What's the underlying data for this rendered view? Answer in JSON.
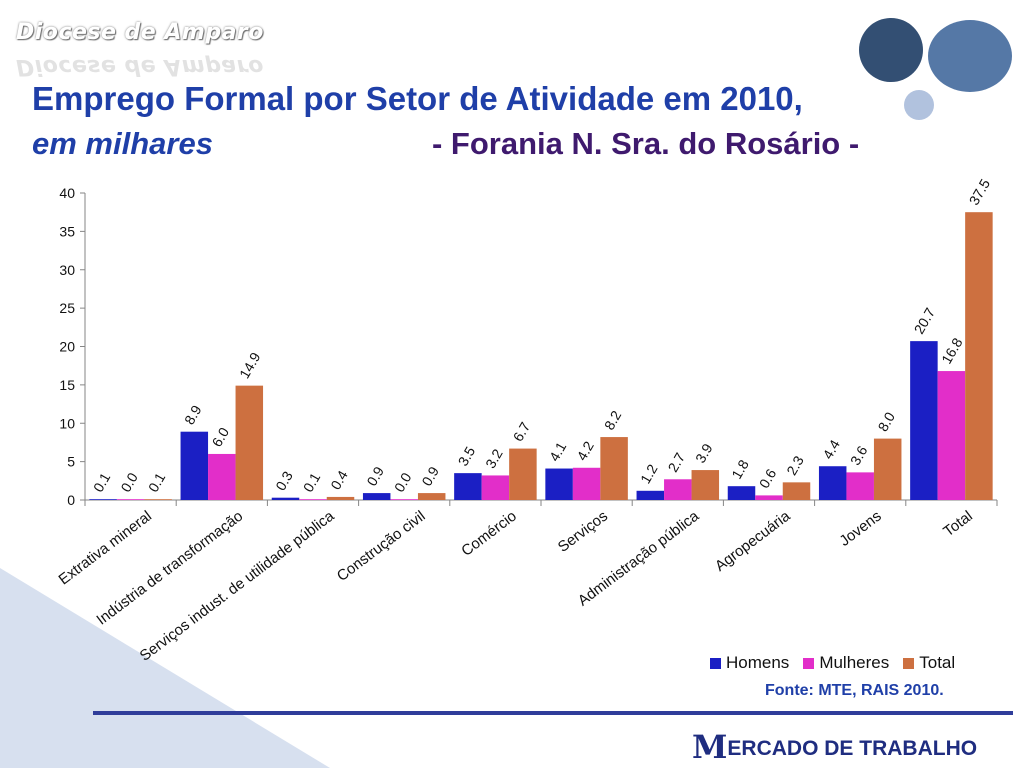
{
  "brand": "Diocese de Amparo",
  "title": {
    "line1": "Emprego Formal por Setor de Atividade em 2010,",
    "line2_italic": "em milhares",
    "line2_region": "- Forania N. Sra. do Rosário -"
  },
  "colors": {
    "homens": "#1b1fc4",
    "mulheres": "#e22ec9",
    "total": "#cd7040",
    "title": "#1f3fa8",
    "axis": "#868686"
  },
  "chart_data": {
    "type": "bar",
    "categories": [
      "Extrativa mineral",
      "Indústria de transformação",
      "Serviços indust. de utilidade pública",
      "Construção civil",
      "Comércio",
      "Serviços",
      "Administração pública",
      "Agropecuária",
      "Jovens",
      "Total"
    ],
    "series": [
      {
        "name": "Homens",
        "values": [
          0.1,
          8.9,
          0.3,
          0.9,
          3.5,
          4.1,
          1.2,
          1.8,
          4.4,
          20.7
        ],
        "labels": [
          "0.1",
          "8.9",
          "0.3",
          "0.9",
          "3.5",
          "4.1",
          "1.2",
          "1.8",
          "4.4",
          "20.7"
        ]
      },
      {
        "name": "Mulheres",
        "values": [
          0.0,
          6.0,
          0.1,
          0.0,
          3.2,
          4.2,
          2.7,
          0.6,
          3.6,
          16.8
        ],
        "labels": [
          "0.0",
          "6.0",
          "0.1",
          "0.0",
          "3.2",
          "4.2",
          "2.7",
          "0.6",
          "3.6",
          "16.8"
        ]
      },
      {
        "name": "Total",
        "values": [
          0.1,
          14.9,
          0.4,
          0.9,
          6.7,
          8.2,
          3.9,
          2.3,
          8.0,
          37.5
        ],
        "labels": [
          "0.1",
          "14.9",
          "0.4",
          "0.9",
          "6.7",
          "8.2",
          "3.9",
          "2.3",
          "8.0",
          "37.5"
        ]
      }
    ],
    "ylim": [
      0,
      40
    ],
    "yticks": [
      "0",
      "5",
      "10",
      "15",
      "20",
      "25",
      "30",
      "35",
      "40"
    ],
    "grid": false,
    "legend_position": "bottom-right"
  },
  "source": "Fonte: MTE, RAIS 2010.",
  "footer": {
    "initial": "M",
    "rest": "ERCADO DE TRABALHO"
  }
}
